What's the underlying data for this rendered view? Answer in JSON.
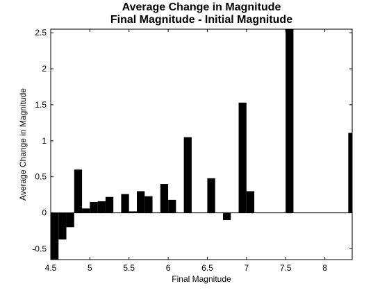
{
  "chart_data": {
    "type": "bar",
    "title": "Average Change in Magnitude",
    "subtitle": "Final Magnitude - Initial Magnitude",
    "xlabel": "Final Magnitude",
    "ylabel": "Average Change in Magnitude",
    "xlim": [
      4.5,
      8.35
    ],
    "ylim": [
      -0.65,
      2.55
    ],
    "x_ticks": [
      4.5,
      5,
      5.5,
      6,
      6.5,
      7,
      7.5,
      8
    ],
    "x_tick_labels": [
      "4.5",
      "5",
      "5.5",
      "6",
      "6.5",
      "7",
      "7.5",
      "8"
    ],
    "y_ticks": [
      -0.5,
      0,
      0.5,
      1,
      1.5,
      2,
      2.5
    ],
    "y_tick_labels": [
      "-0.5",
      "0",
      "0.5",
      "1",
      "1.5",
      "2",
      "2.5"
    ],
    "grid": false,
    "bar_width": 0.1,
    "bar_color": "#000000",
    "x": [
      4.5,
      4.6,
      4.7,
      4.8,
      4.9,
      5.0,
      5.1,
      5.2,
      5.4,
      5.5,
      5.6,
      5.7,
      5.9,
      6.0,
      6.2,
      6.5,
      6.7,
      6.9,
      7.0,
      7.5,
      8.3
    ],
    "values": [
      -0.65,
      -0.37,
      -0.2,
      0.6,
      0.06,
      0.15,
      0.16,
      0.22,
      0.26,
      0.02,
      0.3,
      0.23,
      0.4,
      0.18,
      1.05,
      0.48,
      -0.1,
      1.53,
      0.3,
      2.55,
      1.11
    ]
  }
}
